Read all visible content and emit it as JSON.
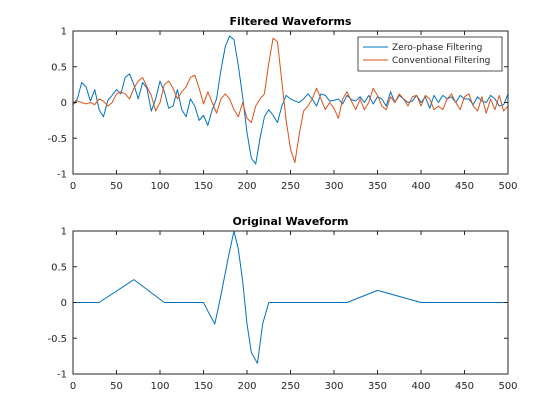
{
  "chart_data": [
    {
      "type": "line",
      "title": "Filtered Waveforms",
      "xlabel": "",
      "ylabel": "",
      "xlim": [
        0,
        500
      ],
      "ylim": [
        -1,
        1
      ],
      "xticks": [
        0,
        50,
        100,
        150,
        200,
        250,
        300,
        350,
        400,
        450,
        500
      ],
      "yticks": [
        -1,
        -0.5,
        0,
        0.5,
        1
      ],
      "grid": false,
      "legend": "top-right",
      "series": [
        {
          "name": "Zero-phase Filtering",
          "color": "#0072BD",
          "x": [
            0,
            5,
            10,
            15,
            20,
            25,
            30,
            35,
            40,
            45,
            50,
            55,
            60,
            65,
            70,
            75,
            80,
            85,
            90,
            95,
            100,
            105,
            110,
            115,
            120,
            125,
            130,
            135,
            140,
            145,
            150,
            155,
            160,
            165,
            170,
            175,
            180,
            185,
            190,
            195,
            200,
            205,
            210,
            215,
            220,
            225,
            230,
            235,
            240,
            245,
            250,
            255,
            260,
            265,
            270,
            275,
            280,
            285,
            290,
            295,
            300,
            305,
            310,
            315,
            320,
            325,
            330,
            335,
            340,
            345,
            350,
            355,
            360,
            365,
            370,
            375,
            380,
            385,
            390,
            395,
            400,
            405,
            410,
            415,
            420,
            425,
            430,
            435,
            440,
            445,
            450,
            455,
            460,
            465,
            470,
            475,
            480,
            485,
            490,
            495,
            500
          ],
          "y": [
            -0.02,
            0.05,
            0.28,
            0.22,
            0.02,
            0.18,
            -0.1,
            -0.2,
            0.03,
            0.1,
            0.18,
            0.12,
            0.35,
            0.4,
            0.25,
            0.05,
            0.28,
            0.2,
            -0.12,
            0.05,
            0.3,
            0.15,
            -0.08,
            -0.05,
            0.18,
            -0.1,
            -0.2,
            0.05,
            -0.05,
            -0.25,
            -0.18,
            -0.32,
            -0.1,
            0.05,
            0.45,
            0.78,
            0.93,
            0.88,
            0.52,
            0.08,
            -0.42,
            -0.78,
            -0.86,
            -0.5,
            -0.2,
            -0.1,
            -0.18,
            -0.28,
            -0.05,
            0.1,
            0.05,
            0.02,
            0.0,
            0.05,
            0.12,
            0.05,
            -0.05,
            0.12,
            0.1,
            0.02,
            0.03,
            0.05,
            -0.02,
            0.1,
            0.04,
            0.02,
            0.08,
            0.0,
            0.1,
            -0.02,
            0.08,
            0.05,
            -0.05,
            0.15,
            0.0,
            0.1,
            0.05,
            0.0,
            0.02,
            0.1,
            0.0,
            0.08,
            -0.08,
            0.1,
            0.0,
            0.1,
            0.05,
            0.08,
            0.0,
            0.1,
            0.05,
            0.05,
            -0.03,
            0.08,
            0.02,
            0.0,
            0.1,
            0.05,
            -0.05,
            -0.03,
            0.12
          ]
        },
        {
          "name": "Conventional Filtering",
          "color": "#D95319",
          "x": [
            0,
            5,
            10,
            15,
            20,
            25,
            30,
            35,
            40,
            45,
            50,
            55,
            60,
            65,
            70,
            75,
            80,
            85,
            90,
            95,
            100,
            105,
            110,
            115,
            120,
            125,
            130,
            135,
            140,
            145,
            150,
            155,
            160,
            165,
            170,
            175,
            180,
            185,
            190,
            195,
            200,
            205,
            210,
            215,
            220,
            225,
            230,
            235,
            240,
            245,
            250,
            255,
            260,
            265,
            270,
            275,
            280,
            285,
            290,
            295,
            300,
            305,
            310,
            315,
            320,
            325,
            330,
            335,
            340,
            345,
            350,
            355,
            360,
            365,
            370,
            375,
            380,
            385,
            390,
            395,
            400,
            405,
            410,
            415,
            420,
            425,
            430,
            435,
            440,
            445,
            450,
            455,
            460,
            465,
            470,
            475,
            480,
            485,
            490,
            495,
            500
          ],
          "y": [
            -0.03,
            0.02,
            0.0,
            -0.02,
            0.0,
            -0.03,
            0.05,
            0.02,
            -0.05,
            0.0,
            0.12,
            0.15,
            0.12,
            0.05,
            0.2,
            0.3,
            0.35,
            0.22,
            0.1,
            -0.12,
            0.0,
            0.25,
            0.3,
            0.2,
            0.05,
            0.15,
            0.22,
            0.35,
            0.38,
            0.2,
            -0.02,
            0.15,
            0.0,
            -0.15,
            0.05,
            0.12,
            0.05,
            -0.1,
            -0.2,
            0.0,
            -0.22,
            -0.28,
            -0.05,
            0.05,
            0.12,
            0.55,
            0.9,
            0.85,
            0.3,
            -0.25,
            -0.65,
            -0.84,
            -0.45,
            -0.12,
            -0.05,
            0.05,
            0.2,
            0.05,
            -0.1,
            0.0,
            -0.08,
            -0.22,
            0.05,
            0.15,
            0.02,
            -0.1,
            0.05,
            -0.1,
            0.0,
            0.2,
            0.1,
            -0.05,
            -0.1,
            0.08,
            0.0,
            0.12,
            0.05,
            -0.05,
            0.08,
            0.1,
            -0.05,
            0.1,
            0.05,
            -0.1,
            -0.05,
            -0.1,
            0.05,
            0.12,
            0.0,
            -0.1,
            0.08,
            0.12,
            -0.05,
            -0.12,
            0.08,
            -0.15,
            0.05,
            -0.1,
            0.1,
            -0.12,
            -0.05
          ]
        }
      ]
    },
    {
      "type": "line",
      "title": "Original Waveform",
      "xlabel": "",
      "ylabel": "",
      "xlim": [
        0,
        500
      ],
      "ylim": [
        -1,
        1
      ],
      "xticks": [
        0,
        50,
        100,
        150,
        200,
        250,
        300,
        350,
        400,
        450,
        500
      ],
      "yticks": [
        -1,
        -0.5,
        0,
        0.5,
        1
      ],
      "grid": false,
      "series": [
        {
          "color": "#0072BD",
          "x": [
            0,
            30,
            70,
            105,
            150,
            155,
            163,
            170,
            178,
            185,
            190,
            195,
            200,
            205,
            212,
            218,
            225,
            230,
            255,
            315,
            350,
            400,
            450,
            500
          ],
          "y": [
            0,
            0,
            0.32,
            0,
            0,
            -0.12,
            -0.3,
            0.1,
            0.6,
            1.0,
            0.75,
            0.3,
            -0.3,
            -0.7,
            -0.85,
            -0.3,
            0,
            0,
            0,
            0,
            0.17,
            0,
            0,
            0
          ]
        }
      ]
    }
  ]
}
